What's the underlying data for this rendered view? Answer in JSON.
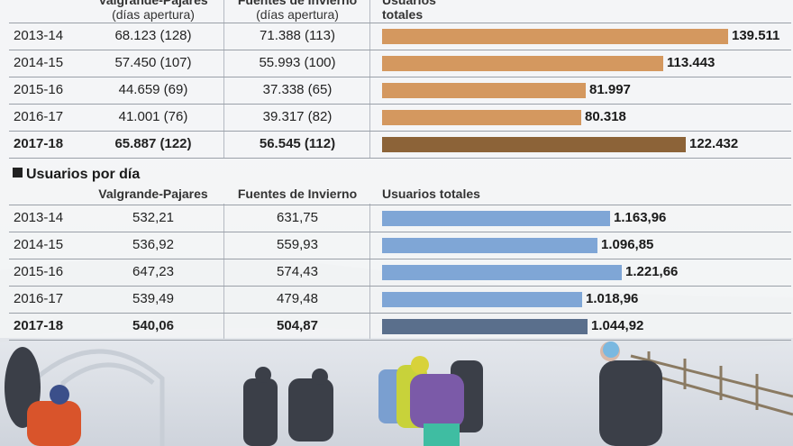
{
  "table1": {
    "headers": {
      "valgrande": [
        "Valgrande-Pajares",
        "(días apertura)"
      ],
      "fuentes": [
        "Fuentes de Invierno",
        "(días apertura)"
      ],
      "usuarios": [
        "Usuarios",
        "totales"
      ]
    },
    "rows": [
      {
        "year": "2013-14",
        "valgrande": "68.123 (128)",
        "fuentes": "71.388 (113)",
        "total_label": "139.511",
        "bold": false
      },
      {
        "year": "2014-15",
        "valgrande": "57.450 (107)",
        "fuentes": "55.993 (100)",
        "total_label": "113.443",
        "bold": false
      },
      {
        "year": "2015-16",
        "valgrande": "44.659 (69)",
        "fuentes": "37.338 (65)",
        "total_label": "81.997",
        "bold": false
      },
      {
        "year": "2016-17",
        "valgrande": "41.001 (76)",
        "fuentes": "39.317 (82)",
        "total_label": "80.318",
        "bold": false
      },
      {
        "year": "2017-18",
        "valgrande": "65.887 (122)",
        "fuentes": "56.545 (112)",
        "total_label": "122.432",
        "bold": true
      }
    ],
    "colors": {
      "bar": "#d4985f",
      "bar_highlight": "#8c6338"
    }
  },
  "table2": {
    "title": "Usuarios por día",
    "headers": {
      "valgrande": "Valgrande-Pajares",
      "fuentes": "Fuentes de Invierno",
      "usuarios": "Usuarios totales"
    },
    "rows": [
      {
        "year": "2013-14",
        "valgrande": "532,21",
        "fuentes": "631,75",
        "total_label": "1.163,96",
        "bold": false
      },
      {
        "year": "2014-15",
        "valgrande": "536,92",
        "fuentes": "559,93",
        "total_label": "1.096,85",
        "bold": false
      },
      {
        "year": "2015-16",
        "valgrande": "647,23",
        "fuentes": "574,43",
        "total_label": "1.221,66",
        "bold": false
      },
      {
        "year": "2016-17",
        "valgrande": "539,49",
        "fuentes": "479,48",
        "total_label": "1.018,96",
        "bold": false
      },
      {
        "year": "2017-18",
        "valgrande": "540,06",
        "fuentes": "504,87",
        "total_label": "1.044,92",
        "bold": true
      }
    ],
    "colors": {
      "bar": "#7fa6d6",
      "bar_highlight": "#5a6f8c"
    }
  },
  "chart_data": [
    {
      "type": "bar",
      "categories": [
        "2013-14",
        "2014-15",
        "2015-16",
        "2016-17",
        "2017-18"
      ],
      "values": [
        139511,
        113443,
        81997,
        80318,
        122432
      ],
      "xlabel": "",
      "ylabel": "Usuarios totales"
    },
    {
      "type": "bar",
      "title": "Usuarios por día",
      "categories": [
        "2013-14",
        "2014-15",
        "2015-16",
        "2016-17",
        "2017-18"
      ],
      "values": [
        1163.96,
        1096.85,
        1221.66,
        1018.96,
        1044.92
      ],
      "xlabel": "",
      "ylabel": "Usuarios totales"
    }
  ]
}
